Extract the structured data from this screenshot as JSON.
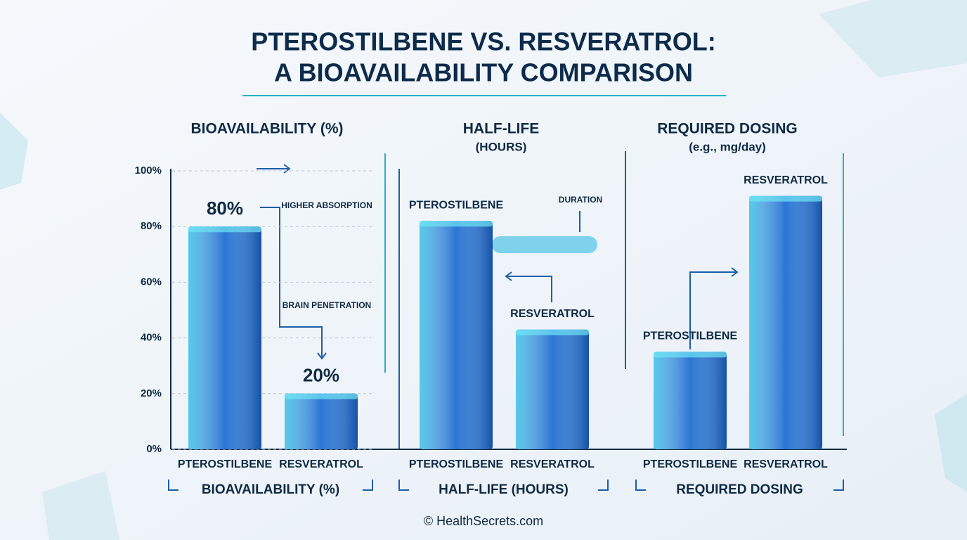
{
  "title": [
    "PTEROSTILBENE VS. RESVERATROL:",
    "A BIOAVAILABILITY COMPARISON"
  ],
  "credit": "© HealthSecrets.com",
  "chart_data": [
    {
      "type": "bar",
      "title": "BIOAVAILABILITY (%)",
      "caption": "BIOAVAILABILITY (%)",
      "categories": [
        "PTEROSTILBENE",
        "RESVERATROL"
      ],
      "values": [
        80,
        20
      ],
      "value_labels": [
        "80%",
        "20%"
      ],
      "color": "#1f6fd1",
      "ylim": [
        0,
        100
      ],
      "yticks": [
        {
          "value": 0,
          "label": "0%"
        },
        {
          "value": 20,
          "label": "20%"
        },
        {
          "value": 40,
          "label": "40%"
        },
        {
          "value": 60,
          "label": "60%"
        },
        {
          "value": 80,
          "label": "80%"
        },
        {
          "value": 100,
          "label": "100%"
        }
      ],
      "grid": true,
      "annotations": [
        "HIGHER ABSORPTION",
        "BRAIN PENETRATION"
      ]
    },
    {
      "type": "bar",
      "title": "HALF-LIFE",
      "subtitle": "(HOURS)",
      "caption": "HALF-LIFE (HOURS)",
      "categories": [
        "PTEROSTILBENE",
        "RESVERATROL"
      ],
      "values": [
        82,
        43
      ],
      "color": "#1f6fd1",
      "annotations": [
        "DURATION"
      ]
    },
    {
      "type": "bar",
      "title": "REQUIRED DOSING",
      "subtitle": "(e.g., mg/day)",
      "caption": "REQUIRED DOSING",
      "categories": [
        "PTEROSTILBENE",
        "RESVERATROL"
      ],
      "values": [
        35,
        91
      ],
      "color": "#1f6fd1"
    }
  ]
}
